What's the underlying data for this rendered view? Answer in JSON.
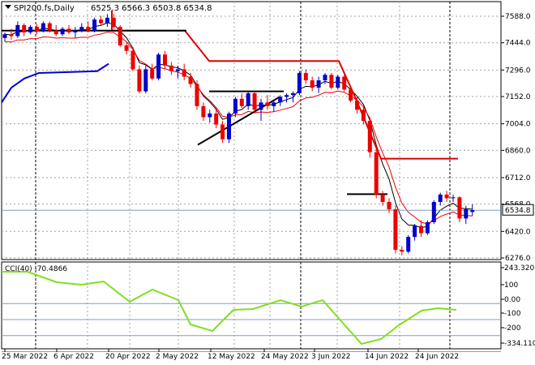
{
  "header": {
    "symbol": "SPI200.fs,Daily",
    "ohlc": "6525.3 6566.3 6503.8 6534.8"
  },
  "indicator": {
    "label": "CCI(40) -70.4866",
    "levels": [
      "243.3203",
      "100",
      "0.00",
      "-100",
      "-200",
      "-334.110"
    ]
  },
  "price_axis": {
    "ticks": [
      "7588.0",
      "7444.0",
      "7296.0",
      "7152.0",
      "7004.0",
      "6860.0",
      "6712.0",
      "6568.0",
      "6420.0",
      "6276.0"
    ],
    "current": "6534.8"
  },
  "dates": [
    "25 Mar 2022",
    "6 Apr 2022",
    "20 Apr 2022",
    "2 May 2022",
    "12 May 2022",
    "24 May 2022",
    "3 Jun 2022",
    "14 Jun 2022",
    "24 Jun 2022"
  ],
  "colors": {
    "bull": "#0000cc",
    "bear": "#ee0000",
    "fast_ma": "#ee0000",
    "slow_ma": "#000080",
    "trailing_stop": "#dd0000",
    "support": "#0000cc",
    "cci": "#80e020",
    "grid": "#a0a0a0"
  },
  "chart_data": {
    "type": "candlestick",
    "bars": [
      [
        7470,
        7500,
        7450,
        7490
      ],
      [
        7490,
        7520,
        7460,
        7480
      ],
      [
        7480,
        7560,
        7470,
        7540
      ],
      [
        7540,
        7550,
        7480,
        7500
      ],
      [
        7500,
        7540,
        7490,
        7530
      ],
      [
        7530,
        7545,
        7490,
        7505
      ],
      [
        7505,
        7560,
        7500,
        7550
      ],
      [
        7550,
        7560,
        7500,
        7510
      ],
      [
        7510,
        7540,
        7480,
        7490
      ],
      [
        7490,
        7530,
        7480,
        7520
      ],
      [
        7520,
        7540,
        7490,
        7500
      ],
      [
        7500,
        7530,
        7470,
        7510
      ],
      [
        7510,
        7550,
        7500,
        7530
      ],
      [
        7530,
        7560,
        7500,
        7510
      ],
      [
        7510,
        7580,
        7500,
        7570
      ],
      [
        7570,
        7590,
        7540,
        7550
      ],
      [
        7550,
        7600,
        7530,
        7580
      ],
      [
        7580,
        7600,
        7520,
        7530
      ],
      [
        7530,
        7540,
        7420,
        7430
      ],
      [
        7430,
        7450,
        7380,
        7400
      ],
      [
        7400,
        7420,
        7290,
        7300
      ],
      [
        7300,
        7320,
        7170,
        7180
      ],
      [
        7180,
        7320,
        7170,
        7300
      ],
      [
        7300,
        7330,
        7240,
        7250
      ],
      [
        7250,
        7390,
        7240,
        7380
      ],
      [
        7380,
        7400,
        7300,
        7320
      ],
      [
        7320,
        7340,
        7270,
        7290
      ],
      [
        7290,
        7320,
        7250,
        7300
      ],
      [
        7300,
        7330,
        7240,
        7260
      ],
      [
        7260,
        7280,
        7200,
        7220
      ],
      [
        7220,
        7240,
        7080,
        7100
      ],
      [
        7100,
        7120,
        7020,
        7040
      ],
      [
        7040,
        7080,
        7010,
        7060
      ],
      [
        7060,
        7090,
        6980,
        7000
      ],
      [
        7000,
        7020,
        6900,
        6920
      ],
      [
        6920,
        7070,
        6900,
        7060
      ],
      [
        7060,
        7150,
        7040,
        7140
      ],
      [
        7140,
        7170,
        7090,
        7100
      ],
      [
        7100,
        7180,
        7080,
        7170
      ],
      [
        7170,
        7180,
        7060,
        7080
      ],
      [
        7080,
        7140,
        7020,
        7120
      ],
      [
        7120,
        7160,
        7080,
        7100
      ],
      [
        7100,
        7130,
        7070,
        7120
      ],
      [
        7120,
        7160,
        7100,
        7150
      ],
      [
        7150,
        7170,
        7120,
        7160
      ],
      [
        7160,
        7180,
        7120,
        7170
      ],
      [
        7170,
        7290,
        7160,
        7280
      ],
      [
        7280,
        7300,
        7220,
        7240
      ],
      [
        7240,
        7260,
        7180,
        7200
      ],
      [
        7200,
        7260,
        7170,
        7240
      ],
      [
        7240,
        7280,
        7220,
        7270
      ],
      [
        7270,
        7280,
        7190,
        7200
      ],
      [
        7200,
        7270,
        7190,
        7260
      ],
      [
        7260,
        7270,
        7180,
        7190
      ],
      [
        7190,
        7200,
        7120,
        7130
      ],
      [
        7130,
        7150,
        7060,
        7080
      ],
      [
        7080,
        7100,
        7000,
        7020
      ],
      [
        7020,
        7040,
        6820,
        6850
      ],
      [
        6850,
        6870,
        6600,
        6620
      ],
      [
        6620,
        6640,
        6560,
        6580
      ],
      [
        6580,
        6600,
        6520,
        6540
      ],
      [
        6540,
        6560,
        6300,
        6320
      ],
      [
        6320,
        6340,
        6290,
        6310
      ],
      [
        6310,
        6400,
        6300,
        6390
      ],
      [
        6390,
        6460,
        6370,
        6450
      ],
      [
        6450,
        6480,
        6390,
        6410
      ],
      [
        6410,
        6480,
        6400,
        6470
      ],
      [
        6470,
        6590,
        6460,
        6580
      ],
      [
        6580,
        6630,
        6560,
        6620
      ],
      [
        6620,
        6640,
        6580,
        6600
      ],
      [
        6600,
        6620,
        6580,
        6605
      ],
      [
        6605,
        6610,
        6470,
        6490
      ],
      [
        6490,
        6560,
        6460,
        6540
      ],
      [
        6525.3,
        6566.3,
        6503.8,
        6534.8
      ]
    ]
  }
}
